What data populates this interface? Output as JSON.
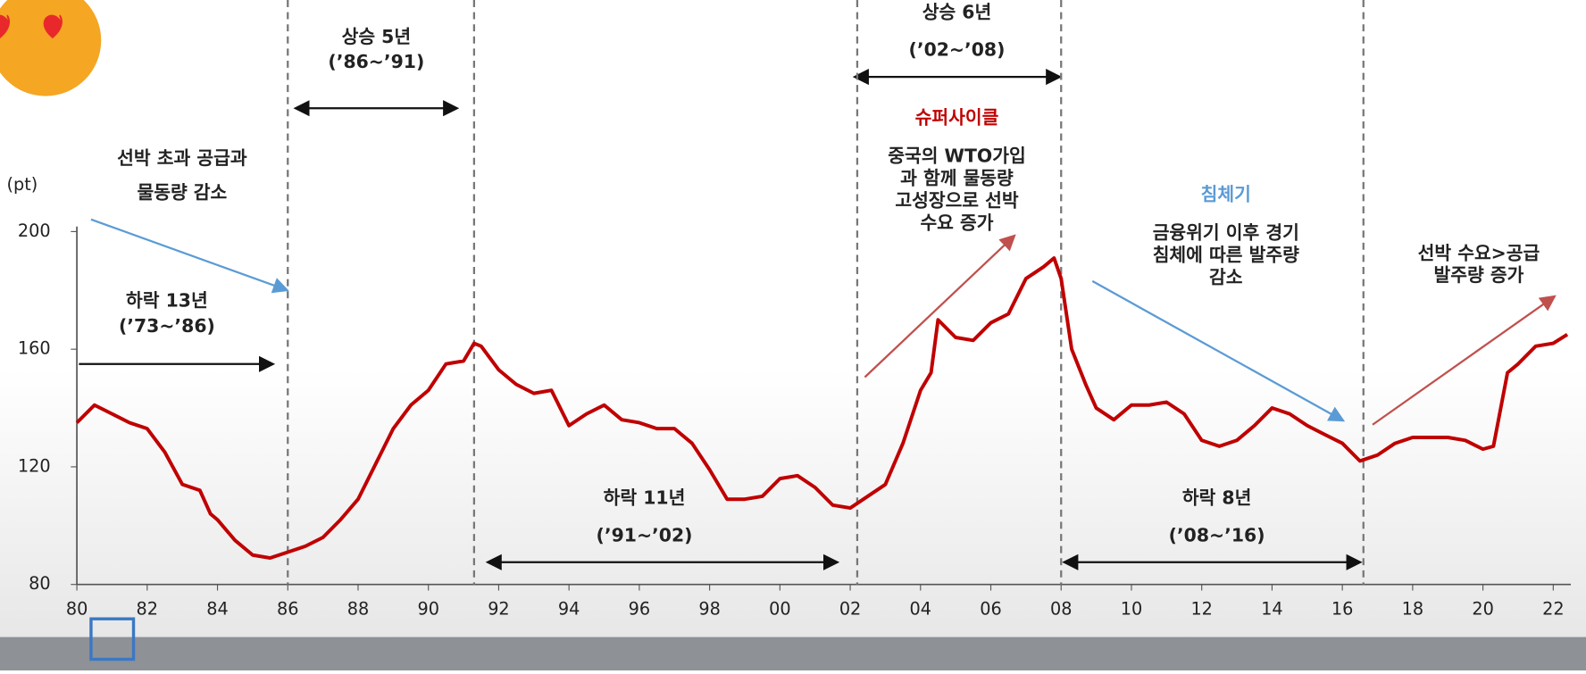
{
  "chart_data": {
    "type": "line",
    "ylabel": "(pt)",
    "x": [
      1980,
      1980.5,
      1981,
      1981.5,
      1982,
      1982.5,
      1983,
      1983.5,
      1983.8,
      1984,
      1984.5,
      1985,
      1985.5,
      1986,
      1986.5,
      1987,
      1987.5,
      1988,
      1988.5,
      1989,
      1989.5,
      1990,
      1990.5,
      1991,
      1991.3,
      1991.5,
      1992,
      1992.5,
      1993,
      1993.5,
      1994,
      1994.5,
      1995,
      1995.5,
      1996,
      1996.5,
      1997,
      1997.5,
      1998,
      1998.5,
      1999,
      1999.5,
      2000,
      2000.5,
      2001,
      2001.5,
      2002,
      2002.5,
      2003,
      2003.5,
      2004,
      2004.3,
      2004.5,
      2005,
      2005.5,
      2006,
      2006.5,
      2007,
      2007.5,
      2007.8,
      2008,
      2008.3,
      2008.7,
      2009,
      2009.5,
      2010,
      2010.5,
      2011,
      2011.5,
      2012,
      2012.5,
      2013,
      2013.5,
      2014,
      2014.5,
      2015,
      2015.5,
      2016,
      2016.5,
      2017,
      2017.5,
      2018,
      2018.5,
      2019,
      2019.5,
      2020,
      2020.3,
      2020.7,
      2021,
      2021.5,
      2022,
      2022.4
    ],
    "series": [
      {
        "color": "#c00000",
        "values": [
          135,
          141,
          138,
          135,
          133,
          125,
          114,
          112,
          104,
          102,
          95,
          90,
          89,
          91,
          93,
          96,
          102,
          109,
          121,
          133,
          141,
          146,
          155,
          156,
          162,
          161,
          153,
          148,
          145,
          146,
          134,
          138,
          141,
          136,
          135,
          133,
          133,
          128,
          119,
          109,
          109,
          110,
          116,
          117,
          113,
          107,
          106,
          110,
          114,
          128,
          146,
          152,
          170,
          164,
          163,
          169,
          172,
          184,
          188,
          191,
          184,
          160,
          148,
          140,
          136,
          141,
          141,
          142,
          138,
          129,
          127,
          129,
          134,
          140,
          138,
          134,
          131,
          128,
          122,
          124,
          128,
          130,
          130,
          130,
          129,
          126,
          127,
          152,
          155,
          161,
          162,
          165
        ]
      }
    ],
    "xlim": [
      1980,
      2022.5
    ],
    "ylim": [
      80,
      200
    ],
    "xticks": [
      {
        "value": 1980,
        "label": "80"
      },
      {
        "value": 1982,
        "label": "82"
      },
      {
        "value": 1984,
        "label": "84"
      },
      {
        "value": 1986,
        "label": "86"
      },
      {
        "value": 1988,
        "label": "88"
      },
      {
        "value": 1990,
        "label": "90"
      },
      {
        "value": 1992,
        "label": "92"
      },
      {
        "value": 1994,
        "label": "94"
      },
      {
        "value": 1996,
        "label": "96"
      },
      {
        "value": 1998,
        "label": "98"
      },
      {
        "value": 2000,
        "label": "00"
      },
      {
        "value": 2002,
        "label": "02"
      },
      {
        "value": 2004,
        "label": "04"
      },
      {
        "value": 2006,
        "label": "06"
      },
      {
        "value": 2008,
        "label": "08"
      },
      {
        "value": 2010,
        "label": "10"
      },
      {
        "value": 2012,
        "label": "12"
      },
      {
        "value": 2014,
        "label": "14"
      },
      {
        "value": 2016,
        "label": "16"
      },
      {
        "value": 2018,
        "label": "18"
      },
      {
        "value": 2020,
        "label": "20"
      },
      {
        "value": 2022,
        "label": "22"
      }
    ],
    "yticks": [
      80,
      120,
      160,
      200
    ],
    "dividers": [
      1986,
      1991.3,
      2002.2,
      2008,
      2016.6
    ],
    "annotations": [
      {
        "lines": [
          "선박 초과 공급과",
          "물동량 감소"
        ]
      },
      {
        "lines": [
          "하락 13년",
          "(’73~’86)"
        ]
      },
      {
        "lines": [
          "상승 5년",
          "(’86~’91)"
        ]
      },
      {
        "lines": [
          "하락 11년",
          "(’91~’02)"
        ]
      },
      {
        "lines": [
          "상승 6년",
          "(’02~’08)"
        ]
      },
      {
        "lines": [
          "슈퍼사이클"
        ],
        "color": "#c00000"
      },
      {
        "lines": [
          "중국의 WTO가입",
          "과 함께 물동량",
          "고성장으로 선박",
          "수요 증가"
        ]
      },
      {
        "lines": [
          "침체기"
        ],
        "color": "#5b9bd5"
      },
      {
        "lines": [
          "금융위기 이후 경기",
          "침체에 따른 발주량",
          "감소"
        ]
      },
      {
        "lines": [
          "하락 8년",
          "(’08~’16)"
        ]
      },
      {
        "lines": [
          "선박 수요>공급",
          "발주량 증가"
        ]
      }
    ]
  }
}
